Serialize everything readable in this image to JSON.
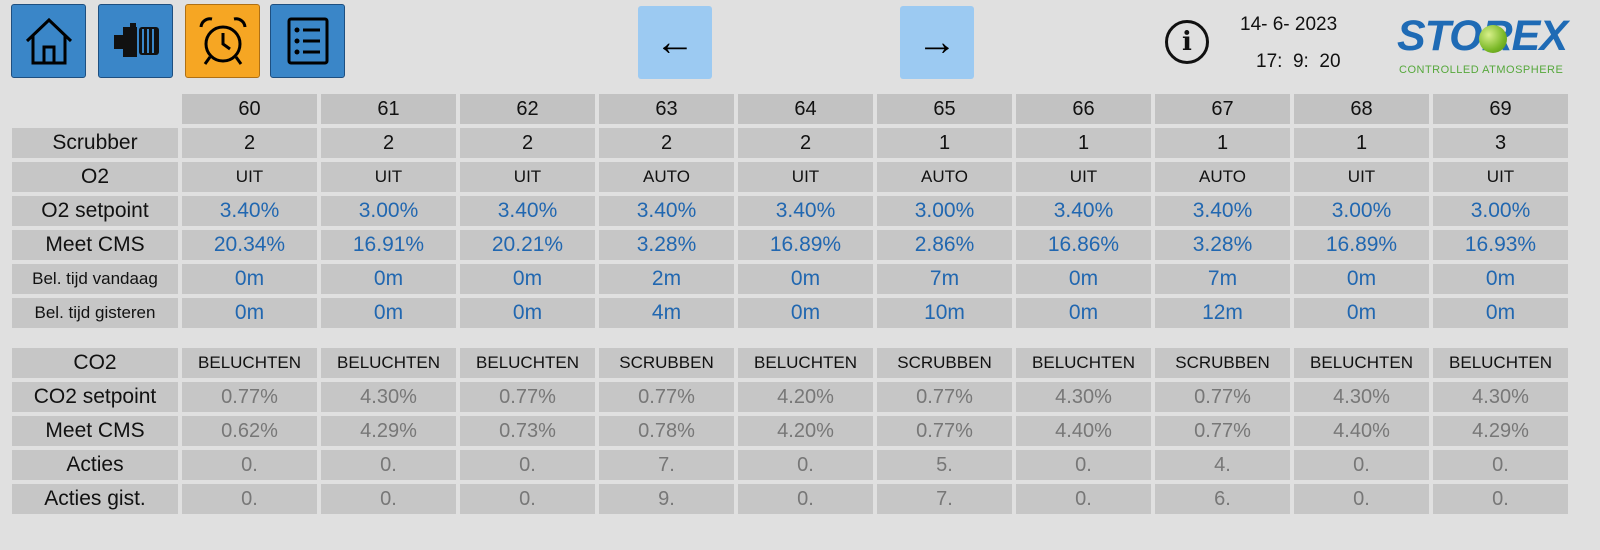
{
  "toolbar": {
    "home_icon": "home-icon",
    "machine_icon": "compressor-icon",
    "alarm_icon": "alarm-clock-icon",
    "list_icon": "list-icon",
    "colors": {
      "blue": "#3a86c8",
      "orange": "#f6a623",
      "arrow": "#9ccaf2"
    }
  },
  "nav": {
    "prev": "←",
    "next": "→"
  },
  "info_glyph": "i",
  "datetime": {
    "date": "14- 6- 2023",
    "time": "17:  9:  20"
  },
  "logo": {
    "name": "STOREX",
    "tagline": "CONTROLLED ATMOSPHERE"
  },
  "table": {
    "columns": [
      "60",
      "61",
      "62",
      "63",
      "64",
      "65",
      "66",
      "67",
      "68",
      "69"
    ],
    "rows": [
      {
        "label": "Scrubber",
        "values": [
          "2",
          "2",
          "2",
          "2",
          "2",
          "1",
          "1",
          "1",
          "1",
          "3"
        ]
      },
      {
        "label": "O2",
        "values": [
          "UIT",
          "UIT",
          "UIT",
          "AUTO",
          "UIT",
          "AUTO",
          "UIT",
          "AUTO",
          "UIT",
          "UIT"
        ]
      },
      {
        "label": "O2 setpoint",
        "values": [
          "3.40%",
          "3.00%",
          "3.40%",
          "3.40%",
          "3.40%",
          "3.00%",
          "3.40%",
          "3.40%",
          "3.00%",
          "3.00%"
        ]
      },
      {
        "label": "Meet CMS",
        "values": [
          "20.34%",
          "16.91%",
          "20.21%",
          "3.28%",
          "16.89%",
          "2.86%",
          "16.86%",
          "3.28%",
          "16.89%",
          "16.93%"
        ]
      },
      {
        "label": "Bel. tijd vandaag",
        "values": [
          "0m",
          "0m",
          "0m",
          "2m",
          "0m",
          "7m",
          "0m",
          "7m",
          "0m",
          "0m"
        ]
      },
      {
        "label": "Bel. tijd gisteren",
        "values": [
          "0m",
          "0m",
          "0m",
          "4m",
          "0m",
          "10m",
          "0m",
          "12m",
          "0m",
          "0m"
        ]
      },
      {
        "label": "CO2",
        "values": [
          "BELUCHTEN",
          "BELUCHTEN",
          "BELUCHTEN",
          "SCRUBBEN",
          "BELUCHTEN",
          "SCRUBBEN",
          "BELUCHTEN",
          "SCRUBBEN",
          "BELUCHTEN",
          "BELUCHTEN"
        ]
      },
      {
        "label": "CO2 setpoint",
        "values": [
          "0.77%",
          "4.30%",
          "0.77%",
          "0.77%",
          "4.20%",
          "0.77%",
          "4.30%",
          "0.77%",
          "4.30%",
          "4.30%"
        ]
      },
      {
        "label": "Meet CMS",
        "values": [
          "0.62%",
          "4.29%",
          "0.73%",
          "0.78%",
          "4.20%",
          "0.77%",
          "4.40%",
          "0.77%",
          "4.40%",
          "4.29%"
        ]
      },
      {
        "label": "Acties",
        "values": [
          "0.",
          "0.",
          "0.",
          "7.",
          "0.",
          "5.",
          "0.",
          "4.",
          "0.",
          "0."
        ]
      },
      {
        "label": "Acties gist.",
        "values": [
          "0.",
          "0.",
          "0.",
          "9.",
          "0.",
          "7.",
          "0.",
          "6.",
          "0.",
          "0."
        ]
      }
    ]
  }
}
